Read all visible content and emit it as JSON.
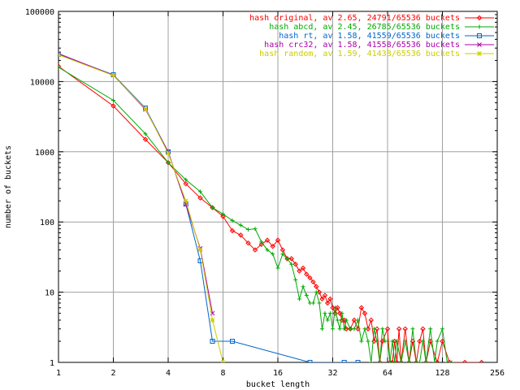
{
  "chart_data": {
    "type": "line",
    "title": "",
    "xlabel": "bucket length",
    "ylabel": "number of buckets",
    "xscale": "log2",
    "yscale": "log10",
    "xlim": [
      1,
      256
    ],
    "ylim": [
      1,
      100000
    ],
    "x_ticks": [
      1,
      2,
      4,
      8,
      16,
      32,
      64,
      128,
      256
    ],
    "x_tick_labels": [
      "1",
      "2",
      "4",
      "8",
      "16",
      "32",
      "64",
      "128",
      "256"
    ],
    "y_ticks": [
      1,
      10,
      100,
      1000,
      10000,
      100000
    ],
    "y_tick_labels": [
      "1",
      "10",
      "100",
      "1000",
      "10000",
      "100000"
    ],
    "grid": true,
    "legend_position": "top-right",
    "series": [
      {
        "name": "hash original, av 2.65, 24791/65536 buckets",
        "color": "#ff0000",
        "marker": "diamond",
        "points": [
          [
            1,
            16500
          ],
          [
            2,
            4500
          ],
          [
            3,
            1500
          ],
          [
            4,
            700
          ],
          [
            5,
            350
          ],
          [
            6,
            220
          ],
          [
            7,
            160
          ],
          [
            8,
            120
          ],
          [
            9,
            75
          ],
          [
            10,
            65
          ],
          [
            11,
            50
          ],
          [
            12,
            40
          ],
          [
            13,
            48
          ],
          [
            14,
            55
          ],
          [
            15,
            45
          ],
          [
            16,
            55
          ],
          [
            17,
            40
          ],
          [
            18,
            30
          ],
          [
            19,
            30
          ],
          [
            20,
            25
          ],
          [
            21,
            20
          ],
          [
            22,
            22
          ],
          [
            23,
            18
          ],
          [
            24,
            16
          ],
          [
            25,
            14
          ],
          [
            26,
            12
          ],
          [
            27,
            10
          ],
          [
            28,
            8
          ],
          [
            29,
            9
          ],
          [
            30,
            7
          ],
          [
            31,
            8
          ],
          [
            32,
            6
          ],
          [
            33,
            5
          ],
          [
            34,
            6
          ],
          [
            35,
            5
          ],
          [
            36,
            4
          ],
          [
            37,
            4
          ],
          [
            38,
            3
          ],
          [
            40,
            3
          ],
          [
            42,
            4
          ],
          [
            44,
            3
          ],
          [
            46,
            6
          ],
          [
            48,
            5
          ],
          [
            50,
            3
          ],
          [
            52,
            4
          ],
          [
            54,
            2
          ],
          [
            56,
            3
          ],
          [
            58,
            1
          ],
          [
            60,
            2
          ],
          [
            64,
            3
          ],
          [
            66,
            1
          ],
          [
            68,
            1
          ],
          [
            70,
            2
          ],
          [
            72,
            1
          ],
          [
            74,
            3
          ],
          [
            76,
            1
          ],
          [
            80,
            3
          ],
          [
            84,
            1
          ],
          [
            88,
            2
          ],
          [
            92,
            1
          ],
          [
            96,
            2
          ],
          [
            100,
            3
          ],
          [
            104,
            1
          ],
          [
            110,
            2
          ],
          [
            120,
            1
          ],
          [
            128,
            2
          ],
          [
            140,
            1
          ],
          [
            170,
            1
          ],
          [
            210,
            1
          ]
        ]
      },
      {
        "name": "hash abcd, av 2.45, 26785/65536 buckets",
        "color": "#00aa00",
        "marker": "plus",
        "points": [
          [
            1,
            16000
          ],
          [
            2,
            5400
          ],
          [
            3,
            1800
          ],
          [
            4,
            700
          ],
          [
            5,
            400
          ],
          [
            6,
            270
          ],
          [
            7,
            160
          ],
          [
            8,
            130
          ],
          [
            9,
            105
          ],
          [
            10,
            90
          ],
          [
            11,
            78
          ],
          [
            12,
            80
          ],
          [
            13,
            52
          ],
          [
            14,
            40
          ],
          [
            15,
            35
          ],
          [
            16,
            22
          ],
          [
            17,
            35
          ],
          [
            18,
            30
          ],
          [
            19,
            25
          ],
          [
            20,
            15
          ],
          [
            21,
            8
          ],
          [
            22,
            12
          ],
          [
            23,
            9
          ],
          [
            24,
            7
          ],
          [
            25,
            7
          ],
          [
            26,
            10
          ],
          [
            27,
            7
          ],
          [
            28,
            3
          ],
          [
            29,
            5
          ],
          [
            30,
            4
          ],
          [
            31,
            5
          ],
          [
            32,
            3
          ],
          [
            33,
            6
          ],
          [
            34,
            4
          ],
          [
            35,
            3
          ],
          [
            36,
            5
          ],
          [
            37,
            3
          ],
          [
            38,
            4
          ],
          [
            40,
            3
          ],
          [
            42,
            3
          ],
          [
            44,
            4
          ],
          [
            46,
            2
          ],
          [
            48,
            3
          ],
          [
            50,
            2
          ],
          [
            52,
            1
          ],
          [
            54,
            3
          ],
          [
            56,
            2
          ],
          [
            58,
            1
          ],
          [
            60,
            3
          ],
          [
            62,
            2
          ],
          [
            64,
            2
          ],
          [
            66,
            1
          ],
          [
            68,
            2
          ],
          [
            70,
            1
          ],
          [
            72,
            2
          ],
          [
            76,
            1
          ],
          [
            80,
            2
          ],
          [
            84,
            1
          ],
          [
            88,
            3
          ],
          [
            92,
            1
          ],
          [
            96,
            1
          ],
          [
            100,
            2
          ],
          [
            104,
            1
          ],
          [
            110,
            3
          ],
          [
            116,
            1
          ],
          [
            120,
            2
          ],
          [
            128,
            3
          ],
          [
            136,
            1
          ],
          [
            144,
            1
          ]
        ]
      },
      {
        "name": "hash rt, av 1.58, 41559/65536 buckets",
        "color": "#0066cc",
        "marker": "square",
        "points": [
          [
            1,
            24500
          ],
          [
            2,
            12500
          ],
          [
            3,
            4200
          ],
          [
            4,
            1000
          ],
          [
            5,
            180
          ],
          [
            6,
            28
          ],
          [
            7,
            2
          ],
          [
            9,
            2
          ],
          [
            24,
            1
          ],
          [
            37,
            1
          ],
          [
            44,
            1
          ]
        ]
      },
      {
        "name": "hash crc32, av 1.58, 41558/65536 buckets",
        "color": "#aa00aa",
        "marker": "cross",
        "points": [
          [
            1,
            25000
          ],
          [
            2,
            12300
          ],
          [
            3,
            4000
          ],
          [
            4,
            1000
          ],
          [
            5,
            180
          ],
          [
            6,
            42
          ],
          [
            7,
            5
          ]
        ]
      },
      {
        "name": "hash random, av 1.59, 41438/65536 buckets",
        "color": "#cccc00",
        "marker": "star",
        "points": [
          [
            1,
            24000
          ],
          [
            2,
            12200
          ],
          [
            3,
            4100
          ],
          [
            4,
            950
          ],
          [
            5,
            200
          ],
          [
            6,
            40
          ],
          [
            7,
            4
          ],
          [
            8,
            1
          ]
        ]
      }
    ]
  }
}
